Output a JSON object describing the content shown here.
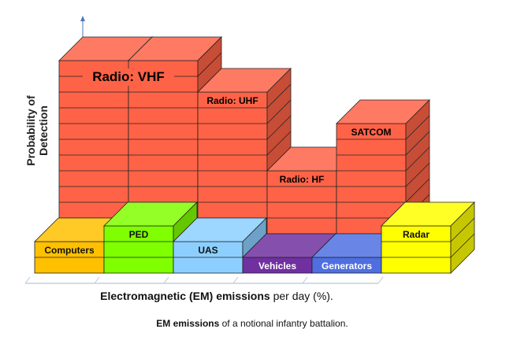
{
  "chart_data": {
    "type": "bar",
    "style": "3d-stacked-blocks",
    "ylabel": "Probability of Detection",
    "xlabel_bold": "Electromagnetic (EM) emissions",
    "xlabel_rest": " per day (%).",
    "caption_bold": "EM emissions",
    "caption_rest": " of a notional infantry battalion.",
    "back_row": [
      {
        "label": "Radio: VHF",
        "columns": 2,
        "height_blocks": 12,
        "color": "#ff6347"
      },
      {
        "label": "Radio: UHF",
        "columns": 1,
        "height_blocks": 10,
        "color": "#ff6347"
      },
      {
        "label": "Radio: HF",
        "columns": 1,
        "height_blocks": 5,
        "color": "#ff6347"
      },
      {
        "label": "SATCOM",
        "columns": 1,
        "height_blocks": 8,
        "color": "#ff6347"
      }
    ],
    "front_row": [
      {
        "label": "Computers",
        "height_blocks": 2,
        "color": "#ffc000"
      },
      {
        "label": "PED",
        "height_blocks": 3,
        "color": "#80ff00"
      },
      {
        "label": "UAS",
        "height_blocks": 2,
        "color": "#8ccfff"
      },
      {
        "label": "Vehicles",
        "height_blocks": 1,
        "color": "#7030a0"
      },
      {
        "label": "Generators",
        "height_blocks": 1,
        "color": "#4f6fe0"
      },
      {
        "label": "Radar",
        "height_blocks": 3,
        "color": "#ffff00"
      }
    ]
  }
}
